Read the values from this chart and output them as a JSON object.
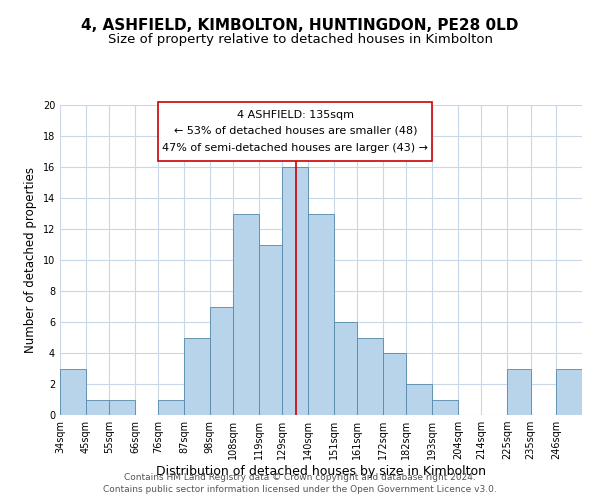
{
  "title": "4, ASHFIELD, KIMBOLTON, HUNTINGDON, PE28 0LD",
  "subtitle": "Size of property relative to detached houses in Kimbolton",
  "xlabel": "Distribution of detached houses by size in Kimbolton",
  "ylabel": "Number of detached properties",
  "footer_line1": "Contains HM Land Registry data © Crown copyright and database right 2024.",
  "footer_line2": "Contains public sector information licensed under the Open Government Licence v3.0.",
  "bin_labels": [
    "34sqm",
    "45sqm",
    "55sqm",
    "66sqm",
    "76sqm",
    "87sqm",
    "98sqm",
    "108sqm",
    "119sqm",
    "129sqm",
    "140sqm",
    "151sqm",
    "161sqm",
    "172sqm",
    "182sqm",
    "193sqm",
    "204sqm",
    "214sqm",
    "225sqm",
    "235sqm",
    "246sqm"
  ],
  "bar_values": [
    3,
    1,
    1,
    0,
    1,
    5,
    7,
    13,
    11,
    16,
    13,
    6,
    5,
    4,
    2,
    1,
    0,
    0,
    3,
    0,
    3
  ],
  "bar_color": "#b8d4ea",
  "bar_edge_color": "#5588aa",
  "vline_color": "#cc0000",
  "bin_edges": [
    34,
    45,
    55,
    66,
    76,
    87,
    98,
    108,
    119,
    129,
    140,
    151,
    161,
    172,
    182,
    193,
    204,
    214,
    225,
    235,
    246,
    257
  ],
  "ylim": [
    0,
    20
  ],
  "yticks": [
    0,
    2,
    4,
    6,
    8,
    10,
    12,
    14,
    16,
    18,
    20
  ],
  "annotation_title": "4 ASHFIELD: 135sqm",
  "annotation_line1": "← 53% of detached houses are smaller (48)",
  "annotation_line2": "47% of semi-detached houses are larger (43) →",
  "box_color": "#ffffff",
  "box_edge_color": "#cc0000",
  "title_fontsize": 11,
  "subtitle_fontsize": 9.5,
  "xlabel_fontsize": 9,
  "ylabel_fontsize": 8.5,
  "tick_fontsize": 7,
  "annotation_fontsize": 8,
  "footer_fontsize": 6.5,
  "grid_color": "#c8d8e8"
}
